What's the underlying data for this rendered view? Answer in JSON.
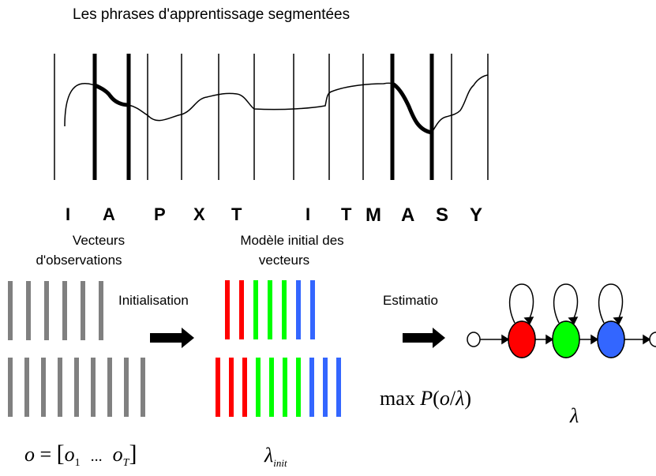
{
  "title": "Les phrases d'apprentissage segmentées",
  "letters": [
    "I",
    "A",
    "P",
    "X",
    "T",
    "I",
    "T",
    "M",
    "A",
    "S",
    "Y"
  ],
  "labels": {
    "observation_vectors": [
      "Vecteurs",
      "d'observations"
    ],
    "initial_model": [
      "Modèle initial des",
      "vecteurs"
    ],
    "initialisation": "Initialisation",
    "estimation": "Estimatio"
  },
  "formulas": {
    "observation": {
      "lhs": "o",
      "equals": "=",
      "o1": "o",
      "sub1": "1",
      "dots": "...",
      "oT": "o",
      "subT": "T"
    },
    "lambda_init": {
      "symbol": "λ",
      "sub": "init"
    },
    "max_prob": {
      "max": "max",
      "P": "P",
      "open": "(",
      "o": "o",
      "slash": "/",
      "lambda": "λ",
      "close": ")"
    },
    "lambda_final": "λ"
  },
  "colors": {
    "gray_bar": "#808080",
    "red": "#ff0000",
    "green": "#00ff00",
    "blue": "#3366ff",
    "black": "#000000"
  },
  "bar_groups": {
    "observations_top": [
      "gray",
      "gray",
      "gray",
      "gray",
      "gray",
      "gray"
    ],
    "observations_bottom": [
      "gray",
      "gray",
      "gray",
      "gray",
      "gray",
      "gray",
      "gray",
      "gray",
      "gray"
    ],
    "model_top": [
      "red",
      "red",
      "green",
      "green",
      "green",
      "blue",
      "blue"
    ],
    "model_bottom": [
      "red",
      "red",
      "red",
      "green",
      "green",
      "green",
      "green",
      "blue",
      "blue",
      "blue"
    ]
  },
  "hmm_states": [
    "red",
    "green",
    "blue"
  ]
}
